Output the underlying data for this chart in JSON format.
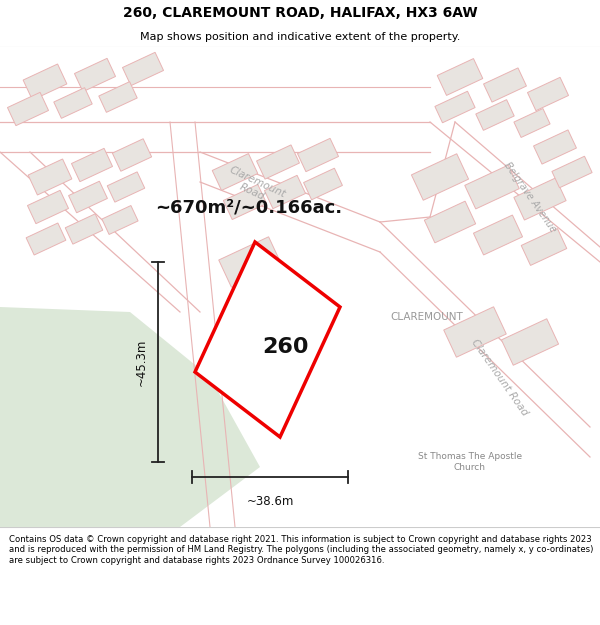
{
  "title_line1": "260, CLAREMOUNT ROAD, HALIFAX, HX3 6AW",
  "title_line2": "Map shows position and indicative extent of the property.",
  "area_text": "~670m²/~0.166ac.",
  "label_260": "260",
  "label_width": "~38.6m",
  "label_height": "~45.3m",
  "label_claremount": "CLAREMOUNT",
  "label_claremount_road": "Claremount Road",
  "label_belgrave": "Belgrave Avenue",
  "label_church": "St Thomas The Apostle\nChurch",
  "footer_text": "Contains OS data © Crown copyright and database right 2021. This information is subject to Crown copyright and database rights 2023 and is reproduced with the permission of HM Land Registry. The polygons (including the associated geometry, namely x, y co-ordinates) are subject to Crown copyright and database rights 2023 Ordnance Survey 100026316.",
  "bg_map_color": "#f5f3f0",
  "bg_green_color": "#dce8d8",
  "road_outline_color": "#e8b4b4",
  "building_color": "#e8e4e0",
  "building_outline_color": "#e8b4b4",
  "plot_fill_color": "#ffffff",
  "plot_outline_color": "#ee0000",
  "footer_bg": "#ffffff",
  "header_bg": "#ffffff",
  "dim_line_color": "#222222",
  "road_label_color": "#aaaaaa",
  "claremount_label_color": "#999999",
  "church_label_color": "#888888"
}
